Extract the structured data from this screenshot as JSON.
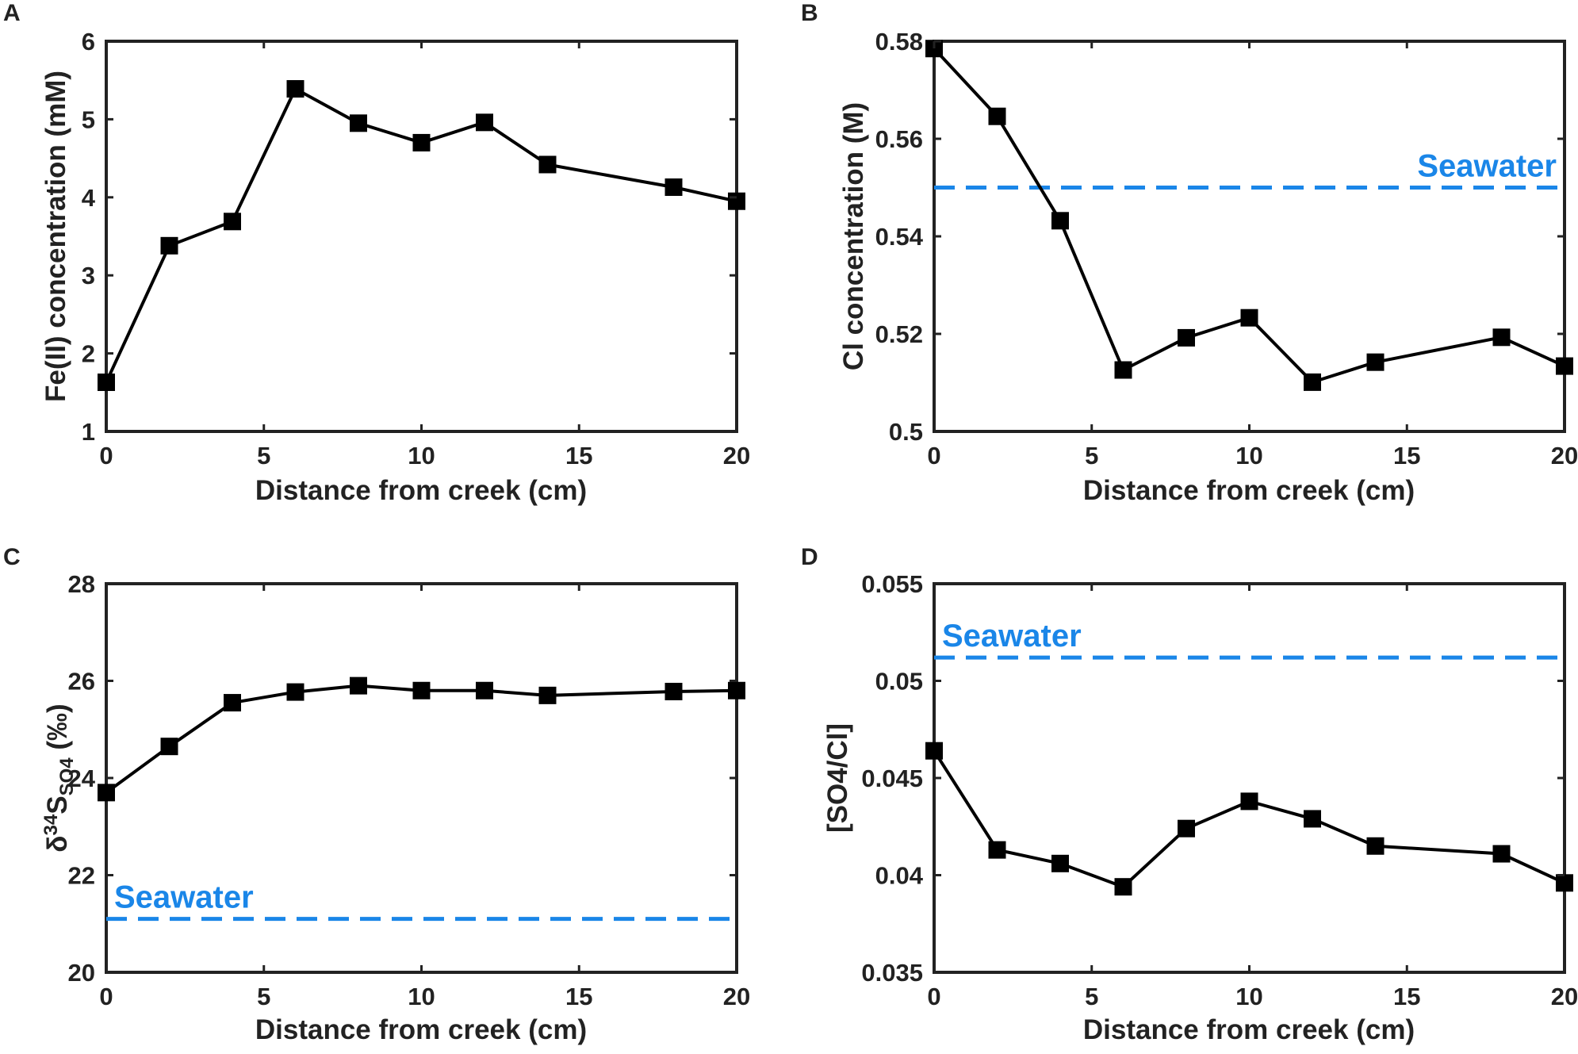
{
  "colors": {
    "axis": "#222222",
    "series": "#000000",
    "reference": "#1a86e8"
  },
  "chart_data": [
    {
      "panel": "A",
      "type": "line",
      "marker": "square",
      "xlabel": "Distance from creek (cm)",
      "ylabel": "Fe(II) concentration (mM)",
      "xlim": [
        0,
        20
      ],
      "ylim": [
        1,
        6
      ],
      "xticks": [
        0,
        5,
        10,
        15,
        20
      ],
      "yticks": [
        1,
        2,
        3,
        4,
        5,
        6
      ],
      "xtick_labels": [
        "0",
        "5",
        "10",
        "15",
        "20"
      ],
      "ytick_labels": [
        "1",
        "2",
        "3",
        "4",
        "5",
        "6"
      ],
      "series": [
        {
          "name": "Fe(II)",
          "x": [
            0,
            2,
            4,
            6,
            8,
            10,
            12,
            14,
            18,
            20
          ],
          "y": [
            1.63,
            3.38,
            3.69,
            5.39,
            4.95,
            4.7,
            4.96,
            4.42,
            4.13,
            3.95
          ]
        }
      ],
      "reference_line": null
    },
    {
      "panel": "B",
      "type": "line",
      "marker": "square",
      "xlabel": "Distance from creek (cm)",
      "ylabel": "Cl concentration (M)",
      "xlim": [
        0,
        20
      ],
      "ylim": [
        0.5,
        0.58
      ],
      "xticks": [
        0,
        5,
        10,
        15,
        20
      ],
      "yticks": [
        0.5,
        0.52,
        0.54,
        0.56,
        0.58
      ],
      "xtick_labels": [
        "0",
        "5",
        "10",
        "15",
        "20"
      ],
      "ytick_labels": [
        "0.5",
        "0.52",
        "0.54",
        "0.56",
        "0.58"
      ],
      "series": [
        {
          "name": "Cl",
          "x": [
            0,
            2,
            4,
            6,
            8,
            10,
            12,
            14,
            18,
            20
          ],
          "y": [
            0.5785,
            0.5646,
            0.5432,
            0.5126,
            0.5192,
            0.5233,
            0.5101,
            0.5142,
            0.5193,
            0.5134
          ]
        }
      ],
      "reference_line": {
        "label": "Seawater",
        "value": 0.55,
        "label_position": "right"
      }
    },
    {
      "panel": "C",
      "type": "line",
      "marker": "square",
      "xlabel": "Distance from creek (cm)",
      "ylabel_parts": {
        "prefix": "δ",
        "superscript": "34",
        "main": "S",
        "subscript": "SO4",
        "unit": " (‰)"
      },
      "xlim": [
        0,
        20
      ],
      "ylim": [
        20,
        28
      ],
      "xticks": [
        0,
        5,
        10,
        15,
        20
      ],
      "yticks": [
        20,
        22,
        24,
        26,
        28
      ],
      "xtick_labels": [
        "0",
        "5",
        "10",
        "15",
        "20"
      ],
      "ytick_labels": [
        "20",
        "22",
        "24",
        "26",
        "28"
      ],
      "series": [
        {
          "name": "d34S SO4",
          "x": [
            0,
            2,
            4,
            6,
            8,
            10,
            12,
            14,
            18,
            20
          ],
          "y": [
            23.7,
            24.65,
            25.55,
            25.77,
            25.9,
            25.8,
            25.8,
            25.7,
            25.78,
            25.8
          ]
        }
      ],
      "reference_line": {
        "label": "Seawater",
        "value": 21.1,
        "label_position": "left"
      }
    },
    {
      "panel": "D",
      "type": "line",
      "marker": "square",
      "xlabel": "Distance from creek (cm)",
      "ylabel": "[SO4/Cl]",
      "xlim": [
        0,
        20
      ],
      "ylim": [
        0.035,
        0.055
      ],
      "xticks": [
        0,
        5,
        10,
        15,
        20
      ],
      "yticks": [
        0.035,
        0.04,
        0.045,
        0.05,
        0.055
      ],
      "xtick_labels": [
        "0",
        "5",
        "10",
        "15",
        "20"
      ],
      "ytick_labels": [
        "0.035",
        "0.04",
        "0.045",
        "0.05",
        "0.055"
      ],
      "series": [
        {
          "name": "SO4/Cl",
          "x": [
            0,
            2,
            4,
            6,
            8,
            10,
            12,
            14,
            18,
            20
          ],
          "y": [
            0.0464,
            0.0413,
            0.0406,
            0.0394,
            0.0424,
            0.0438,
            0.0429,
            0.0415,
            0.0411,
            0.0396
          ]
        }
      ],
      "reference_line": {
        "label": "Seawater",
        "value": 0.0512,
        "label_position": "left"
      }
    }
  ]
}
